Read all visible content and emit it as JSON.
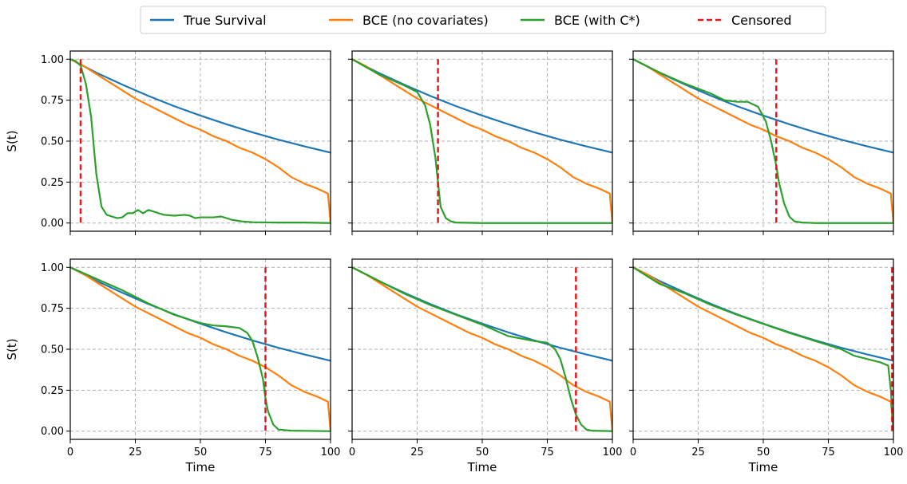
{
  "legend": {
    "placement": "top-center",
    "entries": [
      {
        "label": "True Survival",
        "color": "#1f77b4",
        "style": "solid"
      },
      {
        "label": "BCE (no covariates)",
        "color": "#ff7f0e",
        "style": "solid"
      },
      {
        "label": "BCE (with C*)",
        "color": "#2ca02c",
        "style": "solid"
      },
      {
        "label": "Censored",
        "color": "#e31a1c",
        "style": "dashed"
      }
    ]
  },
  "chart_data": {
    "type": "line",
    "layout": "2x3 small multiples",
    "grid": true,
    "xlabel": "Time",
    "ylabel": "S(t)",
    "xlim": [
      0,
      100
    ],
    "ylim": [
      -0.05,
      1.05
    ],
    "xticks": [
      "0",
      "25",
      "50",
      "75",
      "100"
    ],
    "yticks": [
      "0.00",
      "0.25",
      "0.50",
      "0.75",
      "1.00"
    ],
    "colors": {
      "true": "#1f77b4",
      "bce": "#ff7f0e",
      "bcec": "#2ca02c",
      "censor": "#e31a1c"
    },
    "shared_series": {
      "true_survival": {
        "x": [
          0,
          10,
          20,
          30,
          40,
          50,
          60,
          70,
          80,
          90,
          100
        ],
        "y": [
          1.0,
          0.918,
          0.845,
          0.776,
          0.713,
          0.656,
          0.603,
          0.554,
          0.509,
          0.468,
          0.43
        ]
      },
      "bce_no_covariates": {
        "x": [
          0,
          5,
          10,
          15,
          20,
          25,
          30,
          35,
          40,
          45,
          50,
          55,
          60,
          65,
          70,
          75,
          80,
          85,
          90,
          95,
          99,
          100
        ],
        "y": [
          1.0,
          0.96,
          0.91,
          0.86,
          0.81,
          0.76,
          0.72,
          0.68,
          0.64,
          0.6,
          0.57,
          0.53,
          0.5,
          0.46,
          0.43,
          0.39,
          0.34,
          0.28,
          0.24,
          0.21,
          0.18,
          0.0
        ]
      }
    },
    "panels": [
      {
        "censor_time": 4,
        "bce_with_c": {
          "x": [
            0,
            2,
            4,
            6,
            8,
            10,
            12,
            14,
            16,
            18,
            20,
            22,
            24,
            26,
            28,
            30,
            32,
            34,
            36,
            40,
            44,
            46,
            48,
            50,
            55,
            58,
            62,
            66,
            70,
            80,
            90,
            100
          ],
          "y": [
            1.0,
            0.99,
            0.96,
            0.85,
            0.65,
            0.3,
            0.1,
            0.05,
            0.04,
            0.03,
            0.035,
            0.06,
            0.06,
            0.08,
            0.06,
            0.08,
            0.07,
            0.06,
            0.05,
            0.045,
            0.05,
            0.045,
            0.03,
            0.035,
            0.035,
            0.04,
            0.02,
            0.01,
            0.005,
            0.003,
            0.003,
            0.0
          ]
        }
      },
      {
        "censor_time": 33,
        "bce_with_c": {
          "x": [
            0,
            10,
            20,
            25,
            28,
            30,
            32,
            33,
            34,
            36,
            38,
            40,
            50,
            100
          ],
          "y": [
            1.0,
            0.91,
            0.84,
            0.8,
            0.72,
            0.6,
            0.4,
            0.25,
            0.1,
            0.03,
            0.01,
            0.003,
            0.0,
            0.0
          ]
        }
      },
      {
        "censor_time": 55,
        "bce_with_c": {
          "x": [
            0,
            10,
            20,
            30,
            35,
            40,
            44,
            48,
            51,
            53,
            55,
            56,
            58,
            60,
            62,
            65,
            70,
            100
          ],
          "y": [
            1.0,
            0.92,
            0.85,
            0.79,
            0.75,
            0.74,
            0.74,
            0.71,
            0.62,
            0.5,
            0.35,
            0.25,
            0.12,
            0.04,
            0.01,
            0.003,
            0.0,
            0.0
          ]
        }
      },
      {
        "censor_time": 75,
        "bce_with_c": {
          "x": [
            0,
            10,
            20,
            30,
            40,
            50,
            55,
            60,
            65,
            68,
            70,
            72,
            74,
            75,
            76,
            78,
            80,
            85,
            100
          ],
          "y": [
            1.0,
            0.93,
            0.86,
            0.78,
            0.71,
            0.66,
            0.645,
            0.64,
            0.63,
            0.6,
            0.55,
            0.45,
            0.32,
            0.2,
            0.12,
            0.04,
            0.01,
            0.003,
            0.0
          ]
        }
      },
      {
        "censor_time": 86,
        "bce_with_c": {
          "x": [
            0,
            10,
            20,
            30,
            40,
            50,
            60,
            70,
            75,
            78,
            80,
            82,
            84,
            86,
            88,
            90,
            92,
            100
          ],
          "y": [
            1.0,
            0.92,
            0.84,
            0.77,
            0.71,
            0.65,
            0.58,
            0.55,
            0.54,
            0.5,
            0.44,
            0.33,
            0.2,
            0.1,
            0.04,
            0.01,
            0.003,
            0.0
          ]
        }
      },
      {
        "censor_time": 99.5,
        "bce_with_c": {
          "x": [
            0,
            10,
            20,
            30,
            40,
            50,
            60,
            70,
            80,
            85,
            90,
            95,
            98,
            99,
            100
          ],
          "y": [
            1.0,
            0.9,
            0.84,
            0.77,
            0.71,
            0.655,
            0.6,
            0.55,
            0.5,
            0.46,
            0.44,
            0.42,
            0.4,
            0.25,
            0.0
          ]
        }
      }
    ]
  }
}
